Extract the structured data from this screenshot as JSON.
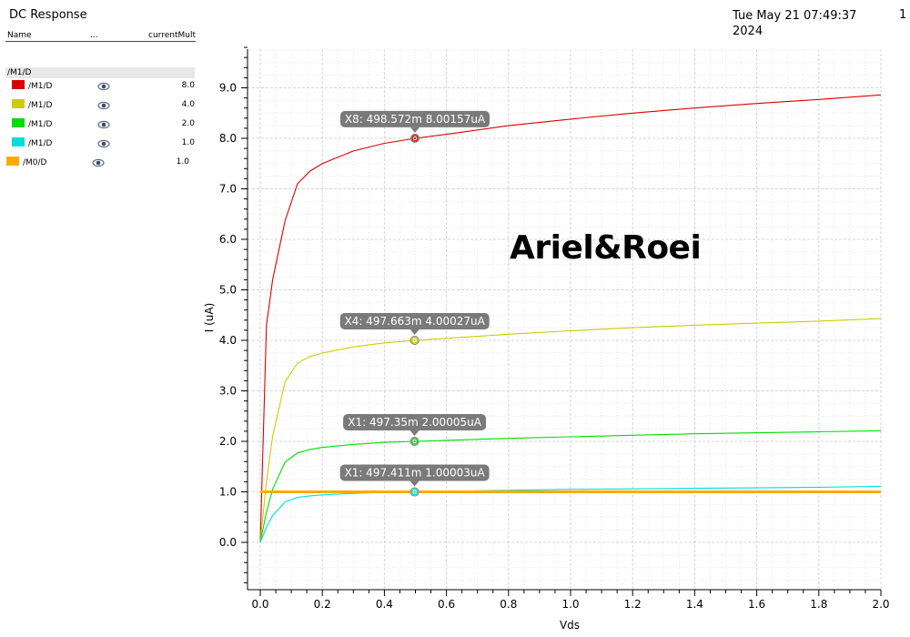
{
  "header": {
    "title": "DC Response",
    "timestamp_line1": "Tue May 21 07:49:37",
    "timestamp_line2": "2024",
    "page_number": "1"
  },
  "legend": {
    "columns": [
      "Name",
      "...",
      "currentMult"
    ],
    "group_label": "/M1/D",
    "items": [
      {
        "label": "/M1/D",
        "color": "#dd0000",
        "mult": "8.0",
        "icon": "eye-icon"
      },
      {
        "label": "/M1/D",
        "color": "#cccc00",
        "mult": "4.0",
        "icon": "eye-icon"
      },
      {
        "label": "/M1/D",
        "color": "#00dd00",
        "mult": "2.0",
        "icon": "eye-icon"
      },
      {
        "label": "/M1/D",
        "color": "#00dddd",
        "mult": "1.0",
        "icon": "eye-icon"
      },
      {
        "label": "/M0/D",
        "color": "#ffaa00",
        "mult": "1.0",
        "icon": "eye-icon"
      }
    ]
  },
  "watermark": "Ariel&Roei",
  "chart_data": {
    "type": "line",
    "xlabel": "Vds",
    "ylabel": "I (uA)",
    "xlim": [
      -0.04,
      2.0
    ],
    "ylim": [
      -0.9,
      9.9
    ],
    "x_ticks": [
      0.0,
      0.2,
      0.4,
      0.6,
      0.8,
      1.0,
      1.2,
      1.4,
      1.6,
      1.8,
      2.0
    ],
    "x_tick_labels": [
      "0.0",
      "0.2",
      "0.4",
      "0.6",
      "0.8",
      "1.0",
      "1.2",
      "1.4",
      "1.6",
      "1.8",
      "2.0"
    ],
    "y_ticks": [
      0.0,
      1.0,
      2.0,
      3.0,
      4.0,
      5.0,
      6.0,
      7.0,
      8.0,
      9.0
    ],
    "y_tick_labels": [
      "0.0",
      "1.0",
      "2.0",
      "3.0",
      "4.0",
      "5.0",
      "6.0",
      "7.0",
      "8.0",
      "9.0"
    ],
    "grid": true,
    "x": [
      0,
      0.02,
      0.04,
      0.08,
      0.12,
      0.16,
      0.2,
      0.3,
      0.4,
      0.5,
      0.6,
      0.8,
      1.0,
      1.2,
      1.4,
      1.6,
      1.8,
      2.0
    ],
    "series": [
      {
        "color": "#dd0000",
        "values": [
          0,
          4.3,
          5.2,
          6.37,
          7.1,
          7.35,
          7.5,
          7.75,
          7.9,
          8.0,
          8.08,
          8.25,
          8.38,
          8.5,
          8.6,
          8.69,
          8.77,
          8.86
        ]
      },
      {
        "color": "#cccc00",
        "values": [
          0,
          1.2,
          2.1,
          3.18,
          3.55,
          3.68,
          3.75,
          3.87,
          3.95,
          4.0,
          4.04,
          4.12,
          4.19,
          4.25,
          4.3,
          4.34,
          4.38,
          4.43
        ]
      },
      {
        "color": "#00dd00",
        "values": [
          0,
          0.6,
          1.05,
          1.59,
          1.77,
          1.84,
          1.88,
          1.94,
          1.98,
          2.0,
          2.02,
          2.06,
          2.09,
          2.12,
          2.15,
          2.17,
          2.19,
          2.21
        ]
      },
      {
        "color": "#00dddd",
        "values": [
          0,
          0.3,
          0.53,
          0.8,
          0.89,
          0.92,
          0.94,
          0.97,
          0.99,
          1.0,
          1.01,
          1.03,
          1.05,
          1.06,
          1.07,
          1.08,
          1.09,
          1.11
        ]
      },
      {
        "color": "#ffaa00",
        "values": [
          1.0,
          1.0,
          1.0,
          1.0,
          1.0,
          1.0,
          1.0,
          1.0,
          1.0,
          1.0,
          1.0,
          1.0,
          1.0,
          1.0,
          1.0,
          1.0,
          1.0,
          1.0
        ]
      }
    ],
    "markers": [
      {
        "x": 0.498572,
        "y": 8.00157,
        "label": "X8: 498.572m 8.00157uA",
        "color": "#dd0000"
      },
      {
        "x": 0.497663,
        "y": 4.00027,
        "label": "X4: 497.663m 4.00027uA",
        "color": "#cccc00"
      },
      {
        "x": 0.49735,
        "y": 2.00005,
        "label": "X1: 497.35m 2.00005uA",
        "color": "#00dd00"
      },
      {
        "x": 0.497411,
        "y": 1.00003,
        "label": "X1: 497.411m 1.00003uA",
        "color": "#00dddd"
      }
    ]
  }
}
